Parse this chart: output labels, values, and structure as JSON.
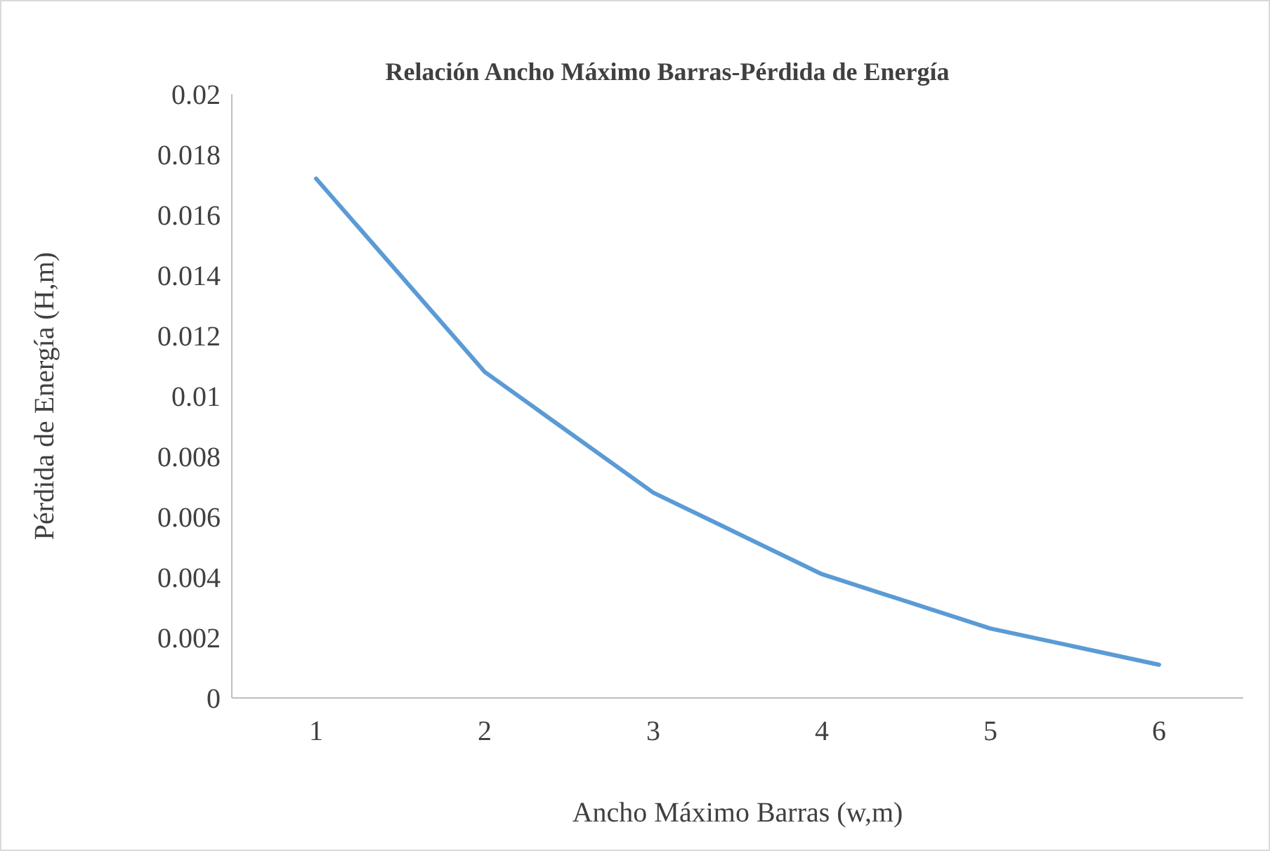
{
  "chart_data": {
    "type": "line",
    "title": "Relación Ancho Máximo Barras-Pérdida de Energía",
    "xlabel": "Ancho Máximo Barras (w,m)",
    "ylabel": "Pérdida de Energía (H,m)",
    "categories": [
      "1",
      "2",
      "3",
      "4",
      "5",
      "6"
    ],
    "series": [
      {
        "color": "#5b9bd5",
        "values": [
          0.0172,
          0.0108,
          0.0068,
          0.0041,
          0.0023,
          0.0011
        ]
      }
    ],
    "ylim": [
      0,
      0.02
    ],
    "yticks": [
      0,
      0.002,
      0.004,
      0.006,
      0.008,
      0.01,
      0.012,
      0.014,
      0.016,
      0.018,
      0.02
    ],
    "marker": "none",
    "line_style": "solid"
  }
}
